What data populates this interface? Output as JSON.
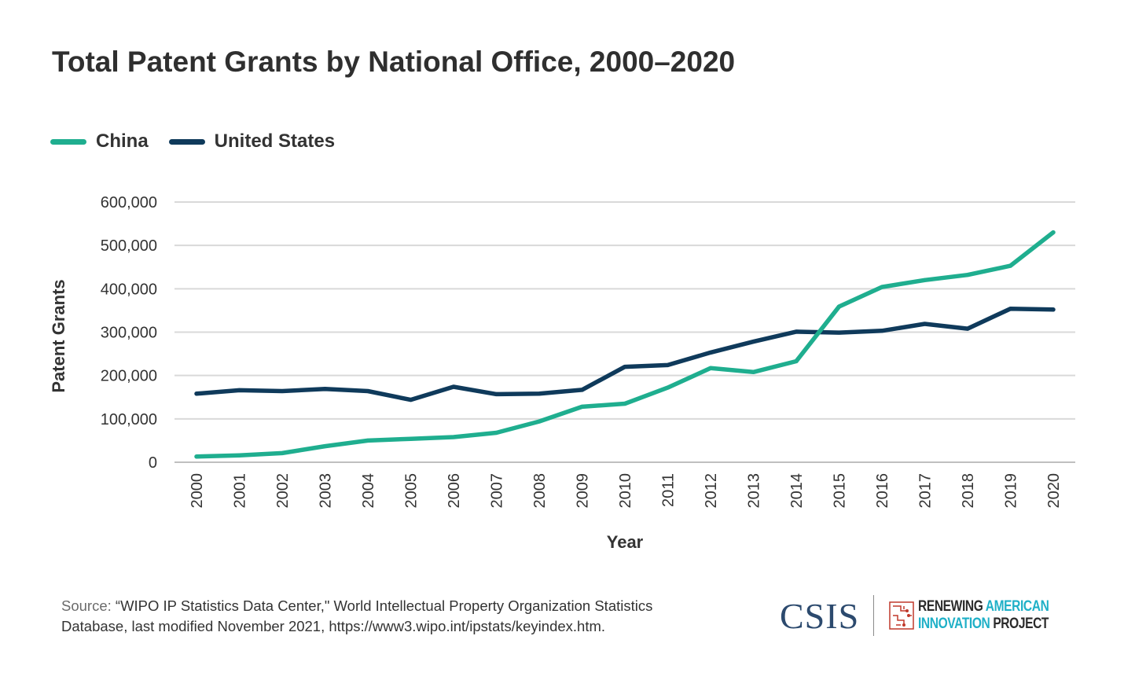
{
  "title": "Total Patent Grants by National Office, 2000–2020",
  "source": {
    "label": "Source:",
    "text": "“WIPO IP Statistics Data Center,\" World Intellectual Property Organization Statistics Database, last modified November 2021, https://www3.wipo.int/ipstats/keyindex.htm."
  },
  "logos": {
    "csis": "CSIS",
    "rai_line1_a": "RENEWING",
    "rai_line1_b": "AMERICAN",
    "rai_line2_a": "INNOVATION",
    "rai_line2_b": "PROJECT"
  },
  "colors": {
    "china": "#1fae8f",
    "united_states": "#0f3a5b",
    "grid": "#d9d9d9",
    "rai_teal": "#1fb0c7",
    "rai_red": "#c0392b"
  },
  "chart_data": {
    "type": "line",
    "title": "Total Patent Grants by National Office, 2000–2020",
    "xlabel": "Year",
    "ylabel": "Patent Grants",
    "x": [
      "2000",
      "2001",
      "2002",
      "2003",
      "2004",
      "2005",
      "2006",
      "2007",
      "2008",
      "2009",
      "2010",
      "2011",
      "2012",
      "2013",
      "2014",
      "2015",
      "2016",
      "2017",
      "2018",
      "2019",
      "2020"
    ],
    "ylim": [
      0,
      600000
    ],
    "yticks": [
      0,
      100000,
      200000,
      300000,
      400000,
      500000,
      600000
    ],
    "ytick_labels": [
      "0",
      "100,000",
      "200,000",
      "300,000",
      "400,000",
      "500,000",
      "600,000"
    ],
    "grid": true,
    "legend_position": "top-left",
    "series": [
      {
        "name": "China",
        "color": "#1fae8f",
        "values": [
          13000,
          16000,
          21000,
          37000,
          50000,
          54000,
          58000,
          68000,
          94000,
          128000,
          135000,
          172000,
          217000,
          208000,
          233000,
          359000,
          404000,
          420000,
          432000,
          453000,
          530000
        ]
      },
      {
        "name": "United States",
        "color": "#0f3a5b",
        "values": [
          158000,
          166000,
          164000,
          169000,
          164000,
          144000,
          174000,
          157000,
          158000,
          167000,
          220000,
          224000,
          253000,
          278000,
          301000,
          299000,
          303000,
          319000,
          308000,
          354000,
          352000
        ]
      }
    ]
  }
}
